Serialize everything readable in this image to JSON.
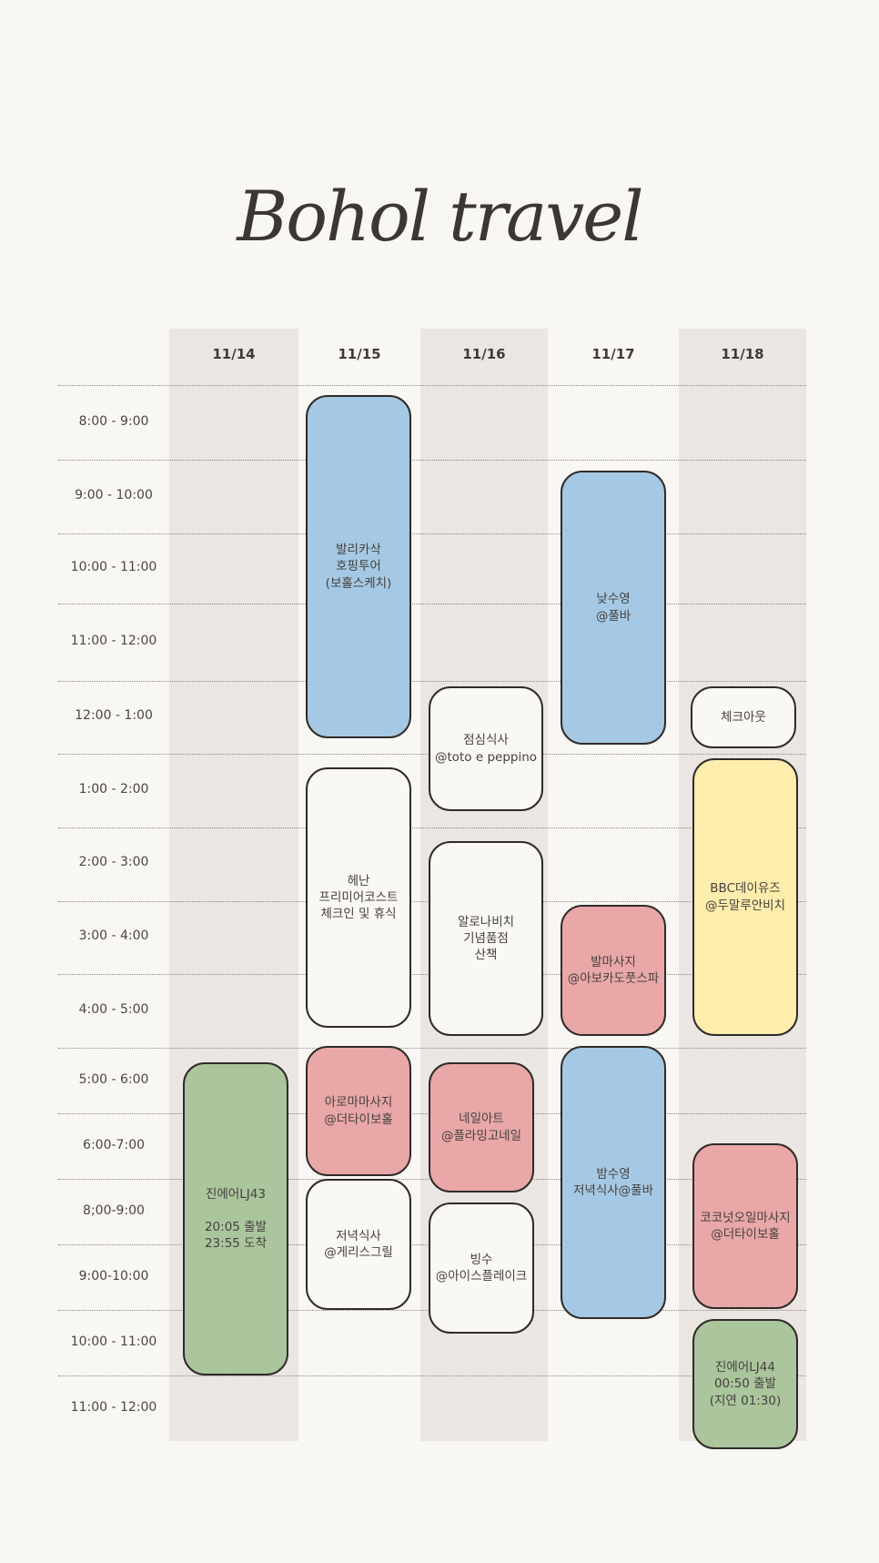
{
  "title": "Bohol travel",
  "days": [
    "11/14",
    "11/15",
    "11/16",
    "11/17",
    "11/18"
  ],
  "time_slots": [
    "8:00 - 9:00",
    "9:00 - 10:00",
    "10:00 - 11:00",
    "11:00 - 12:00",
    "12:00 - 1:00",
    "1:00 - 2:00",
    "2:00 - 3:00",
    "3:00 - 4:00",
    "4:00 - 5:00",
    "5:00 - 6:00",
    "6:00-7:00",
    "8;00-9:00",
    "9:00-10:00",
    "10:00  - 11:00",
    "11:00 - 12:00"
  ],
  "colors": {
    "blue": "#a5c9e4",
    "white": "#faf8f4",
    "pink": "#e9a7a8",
    "yellow": "#feedac",
    "green": "#abc59c",
    "column_shade": "#ebe6e1",
    "background": "#f9f7f3"
  },
  "events": {
    "d15_hopping": "발리카삭\n호핑투어\n(보홀스케치)",
    "d15_checkin": "헤난\n프리미어코스트\n체크인 및 휴식",
    "d15_aroma": "아로마마사지\n@더타이보홀",
    "d15_dinner": "저녁식사\n@게리스그릴",
    "d16_lunch": "점심식사\n@toto e peppino",
    "d16_souvenir": "알로나비치\n기념품점\n산책",
    "d16_nail": "네일아트\n@플라밍고네일",
    "d16_bingsu": "빙수\n@아이스플레이크",
    "d17_daysswim": "낮수영\n@풀바",
    "d17_footmassage": "발마사지\n@아보카도풋스파",
    "d17_nightswim": "밤수영\n저녁식사@풀바",
    "d18_checkout": "체크아웃",
    "d18_bbc": "BBC데이유즈\n@두말루안비치",
    "d18_coconut": "코코넛오일마사지\n@더타이보홀",
    "d18_flight": "진에어LJ44\n00:50 출발\n(지연 01:30)",
    "d14_flight": "진에어LJ43\n\n20:05 출발\n23:55 도착"
  }
}
